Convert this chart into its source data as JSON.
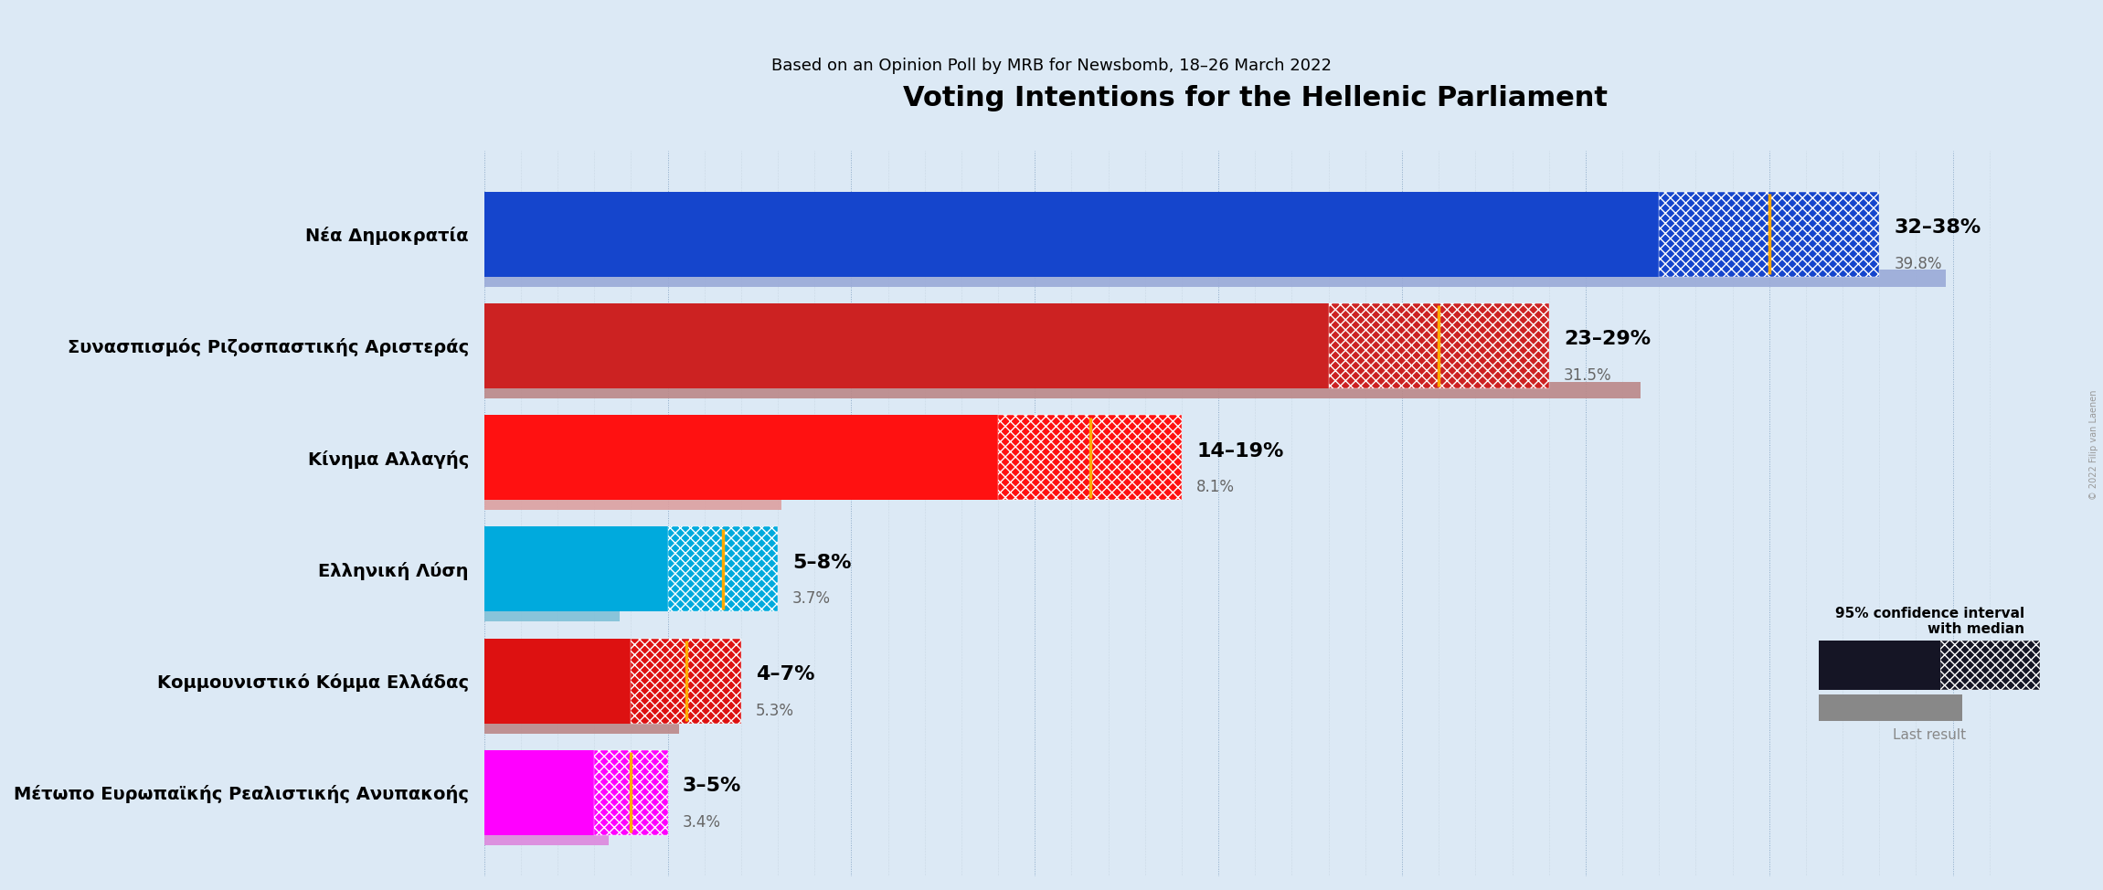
{
  "title": "Voting Intentions for the Hellenic Parliament",
  "subtitle": "Based on an Opinion Poll by MRB for Newsbomb, 18–26 March 2022",
  "background_color": "#dce9f5",
  "parties": [
    {
      "name": "Νέα Δημοκρατία",
      "ci_low": 32,
      "ci_high": 38,
      "median": 35,
      "last_result": 39.8,
      "color": "#1545cc",
      "last_color": "#9aaad8",
      "label": "32–38%",
      "last_label": "39.8%"
    },
    {
      "name": "Συνασπισμός Ριζοσπαστικής Αριστεράς",
      "ci_low": 23,
      "ci_high": 29,
      "median": 26,
      "last_result": 31.5,
      "color": "#cc2222",
      "last_color": "#bb8888",
      "label": "23–29%",
      "last_label": "31.5%"
    },
    {
      "name": "Κίνημα Αλλαγής",
      "ci_low": 14,
      "ci_high": 19,
      "median": 16.5,
      "last_result": 8.1,
      "color": "#ff1111",
      "last_color": "#dda0a0",
      "label": "14–19%",
      "last_label": "8.1%"
    },
    {
      "name": "Ελληνική Λύση",
      "ci_low": 5,
      "ci_high": 8,
      "median": 6.5,
      "last_result": 3.7,
      "color": "#00aadd",
      "last_color": "#80c0d8",
      "label": "5–8%",
      "last_label": "3.7%"
    },
    {
      "name": "Κομμουνιστικό Κόμμα Ελλάδας",
      "ci_low": 4,
      "ci_high": 7,
      "median": 5.5,
      "last_result": 5.3,
      "color": "#dd1111",
      "last_color": "#bb8888",
      "label": "4–7%",
      "last_label": "5.3%"
    },
    {
      "name": "Μέτωπο Ευρωπαϊκής Ρεαλιστικής Ανυπακοής",
      "ci_low": 3,
      "ci_high": 5,
      "median": 4,
      "last_result": 3.4,
      "color": "#ff00ff",
      "last_color": "#dd88dd",
      "label": "3–5%",
      "last_label": "3.4%"
    }
  ],
  "xlim": [
    0,
    42
  ],
  "bar_height": 0.38,
  "last_bar_height": 0.15,
  "title_fontsize": 22,
  "subtitle_fontsize": 13,
  "label_fontsize": 16,
  "last_label_fontsize": 12,
  "name_fontsize": 14,
  "copyright_text": "© 2022 Filip van Laenen",
  "legend_ci_color": "#151525",
  "legend_last_color": "#888888",
  "dot_color": "#8899aa",
  "median_line_color": "#ffaa00"
}
